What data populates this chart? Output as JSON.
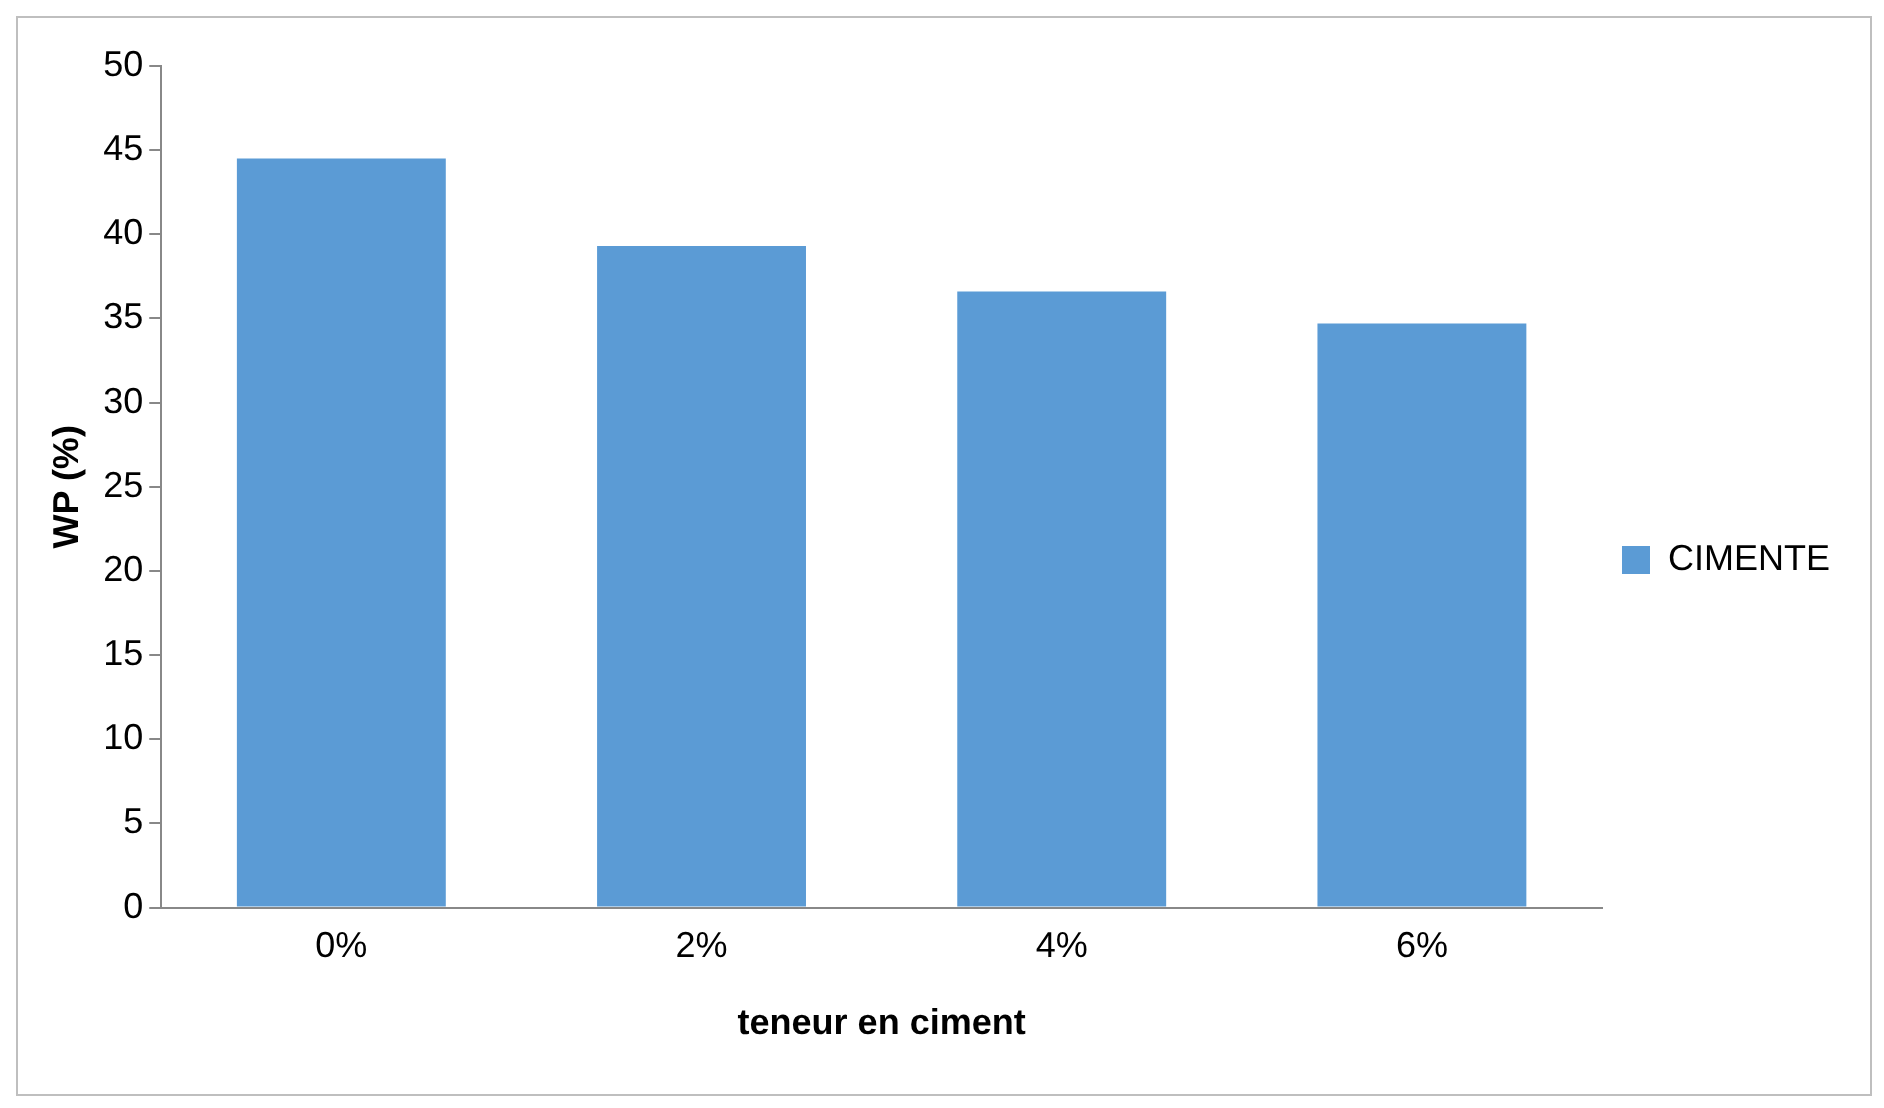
{
  "chart_data": {
    "type": "bar",
    "xlabel": "teneur en ciment",
    "ylabel": "WP (%)",
    "categories": [
      "0%",
      "2%",
      "4%",
      "6%"
    ],
    "series": [
      {
        "name": "CIMENTE",
        "color": "#5b9bd5",
        "values": [
          44.5,
          39.3,
          36.6,
          34.7
        ]
      }
    ],
    "ylim": [
      0,
      50
    ],
    "yticks": [
      0,
      5,
      10,
      15,
      20,
      25,
      30,
      35,
      40,
      45,
      50
    ],
    "grid": false,
    "legend": "right"
  }
}
